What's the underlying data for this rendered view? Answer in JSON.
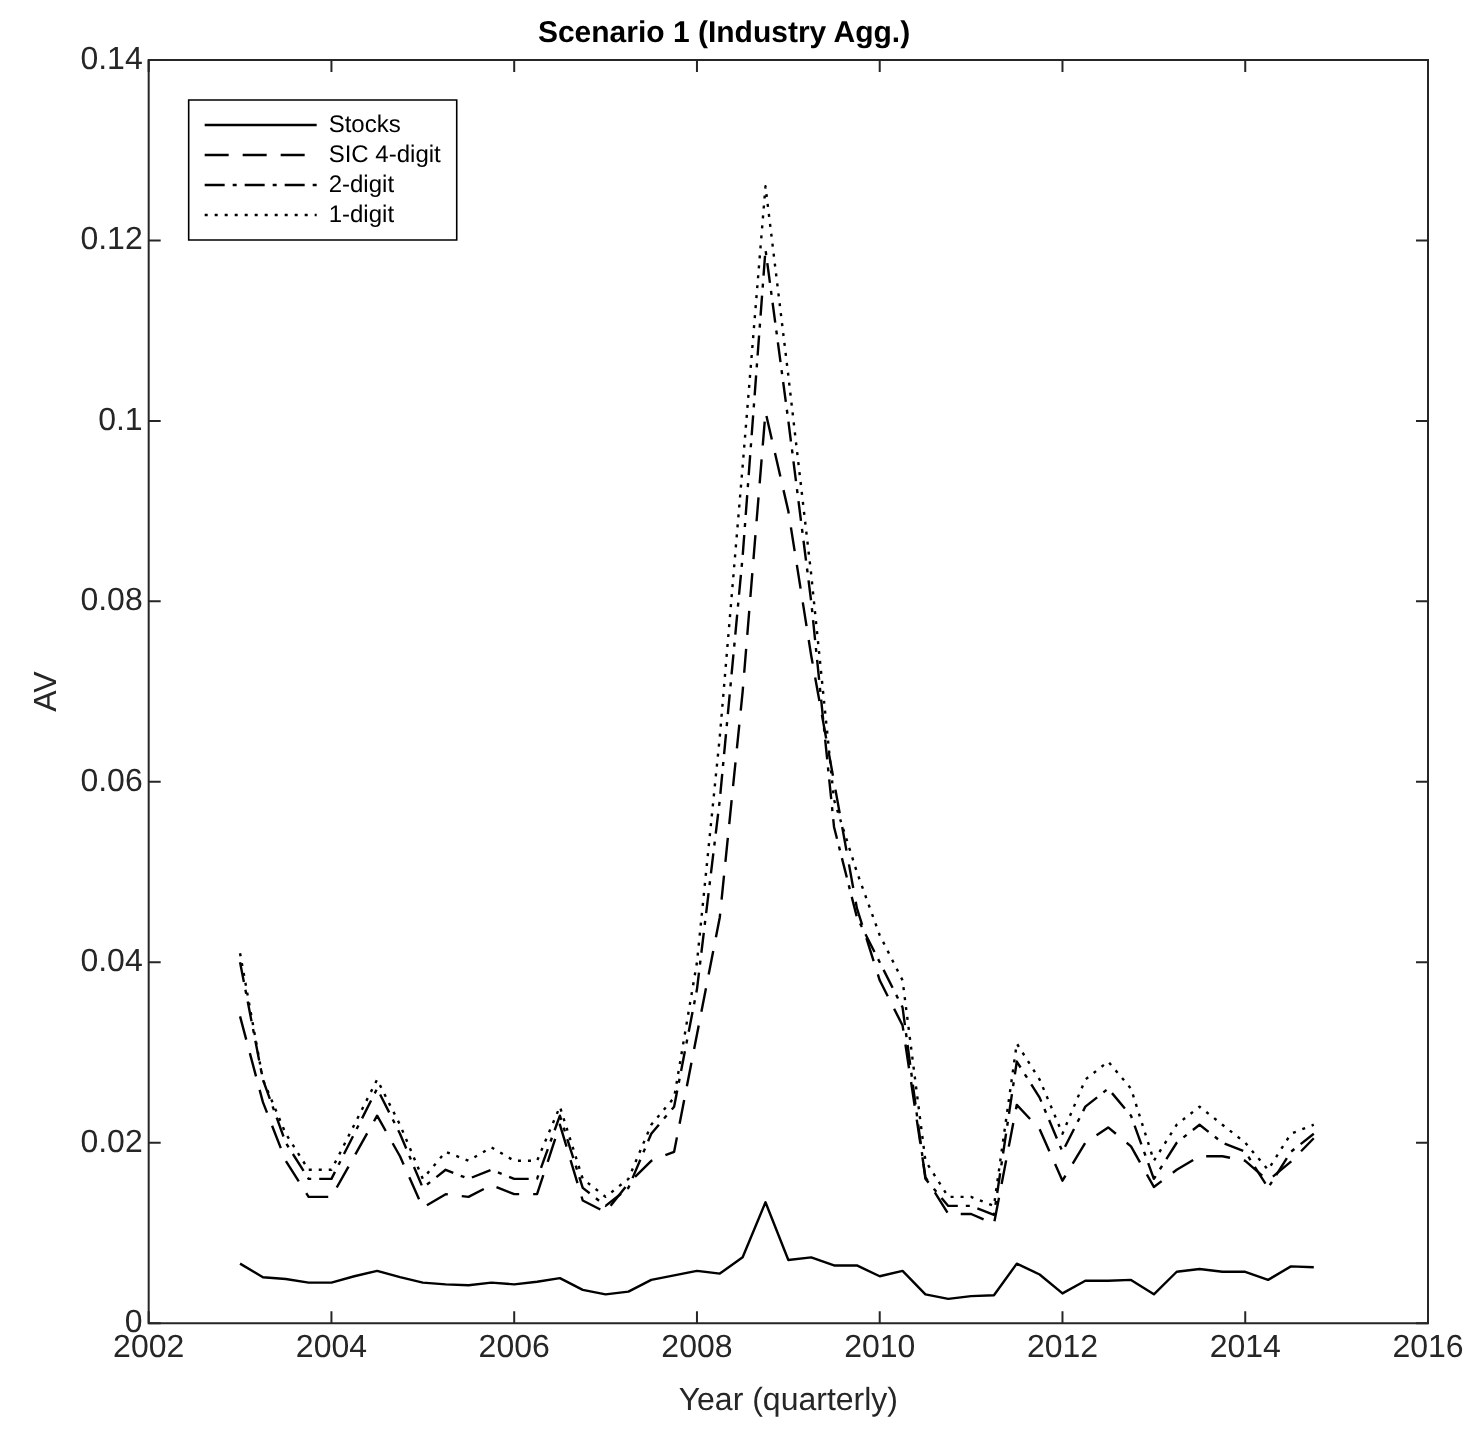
{
  "chart_data": {
    "type": "line",
    "title": "Scenario 1 (Industry Agg.)",
    "xlabel": "Year (quarterly)",
    "ylabel": "AV",
    "x": [
      2003,
      2003.25,
      2003.5,
      2003.75,
      2004,
      2004.25,
      2004.5,
      2004.75,
      2005,
      2005.25,
      2005.5,
      2005.75,
      2006,
      2006.25,
      2006.5,
      2006.75,
      2007,
      2007.25,
      2007.5,
      2007.75,
      2008,
      2008.25,
      2008.5,
      2008.75,
      2009,
      2009.25,
      2009.5,
      2009.75,
      2010,
      2010.25,
      2010.5,
      2010.75,
      2011,
      2011.25,
      2011.5,
      2011.75,
      2012,
      2012.25,
      2012.5,
      2012.75,
      2013,
      2013.25,
      2013.5,
      2013.75,
      2014,
      2014.25,
      2014.5,
      2014.75
    ],
    "series": [
      {
        "name": "Stocks",
        "color": "#000000",
        "line_style": "solid",
        "values": [
          0.0066,
          0.0051,
          0.0049,
          0.0045,
          0.0045,
          0.0052,
          0.0058,
          0.0051,
          0.0045,
          0.0043,
          0.0042,
          0.0045,
          0.0043,
          0.0046,
          0.005,
          0.0037,
          0.0032,
          0.0035,
          0.0048,
          0.0053,
          0.0058,
          0.0055,
          0.0073,
          0.0134,
          0.007,
          0.0073,
          0.0064,
          0.0064,
          0.0052,
          0.0058,
          0.0032,
          0.0027,
          0.003,
          0.0031,
          0.0066,
          0.0054,
          0.0033,
          0.0047,
          0.0047,
          0.0048,
          0.0032,
          0.0057,
          0.006,
          0.0057,
          0.0057,
          0.0048,
          0.0063,
          0.0062
        ]
      },
      {
        "name": "SIC 4-digit",
        "color": "#000000",
        "line_style": "dashed",
        "values": [
          0.034,
          0.0245,
          0.018,
          0.014,
          0.014,
          0.0185,
          0.023,
          0.0185,
          0.0128,
          0.0143,
          0.014,
          0.0153,
          0.0143,
          0.0143,
          0.022,
          0.0136,
          0.0123,
          0.0155,
          0.018,
          0.019,
          0.032,
          0.045,
          0.07,
          0.101,
          0.09,
          0.074,
          0.06,
          0.046,
          0.038,
          0.033,
          0.0162,
          0.0121,
          0.0121,
          0.011,
          0.0242,
          0.0215,
          0.0158,
          0.02,
          0.0217,
          0.0196,
          0.0151,
          0.017,
          0.0185,
          0.0185,
          0.018,
          0.0158,
          0.0179,
          0.0205
        ]
      },
      {
        "name": "2-digit",
        "color": "#000000",
        "line_style": "dashdot",
        "values": [
          0.04,
          0.027,
          0.02,
          0.016,
          0.016,
          0.021,
          0.026,
          0.021,
          0.015,
          0.017,
          0.016,
          0.017,
          0.016,
          0.016,
          0.023,
          0.015,
          0.013,
          0.015,
          0.021,
          0.024,
          0.037,
          0.058,
          0.085,
          0.119,
          0.1,
          0.08,
          0.055,
          0.045,
          0.04,
          0.035,
          0.016,
          0.013,
          0.013,
          0.012,
          0.029,
          0.025,
          0.019,
          0.024,
          0.026,
          0.023,
          0.016,
          0.02,
          0.022,
          0.02,
          0.019,
          0.015,
          0.019,
          0.021
        ]
      },
      {
        "name": "1-digit",
        "color": "#000000",
        "line_style": "dotted",
        "values": [
          0.041,
          0.027,
          0.021,
          0.017,
          0.017,
          0.022,
          0.027,
          0.022,
          0.016,
          0.019,
          0.018,
          0.0195,
          0.018,
          0.018,
          0.024,
          0.016,
          0.014,
          0.016,
          0.022,
          0.025,
          0.04,
          0.065,
          0.095,
          0.126,
          0.105,
          0.083,
          0.058,
          0.05,
          0.043,
          0.038,
          0.018,
          0.014,
          0.014,
          0.013,
          0.031,
          0.027,
          0.021,
          0.027,
          0.029,
          0.026,
          0.018,
          0.022,
          0.024,
          0.022,
          0.02,
          0.017,
          0.021,
          0.022
        ]
      }
    ],
    "xlim": [
      2002,
      2016
    ],
    "xticks": [
      2002,
      2004,
      2006,
      2008,
      2010,
      2012,
      2014,
      2016
    ],
    "ylim": [
      0,
      0.14
    ],
    "yticks": [
      0,
      0.02,
      0.04,
      0.06,
      0.08,
      0.1,
      0.12,
      0.14
    ],
    "grid": false,
    "legend": "top left",
    "marker": "none"
  }
}
